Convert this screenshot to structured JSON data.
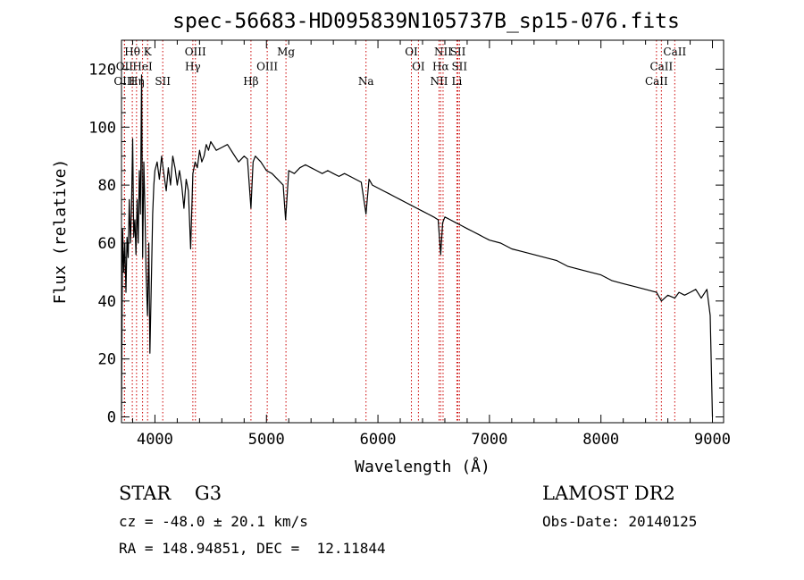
{
  "chart_data": {
    "type": "line",
    "title": "spec-56683-HD095839N105737B_sp15-076.fits",
    "xlabel": "Wavelength (Å)",
    "ylabel": "Flux (relative)",
    "xlim": [
      3700,
      9100
    ],
    "ylim": [
      -2,
      130
    ],
    "xticks": [
      4000,
      5000,
      6000,
      7000,
      8000,
      9000
    ],
    "yticks": [
      0,
      20,
      40,
      60,
      80,
      100,
      120
    ],
    "grid": false,
    "line_color": "#000000",
    "marker_color": "#cc0000",
    "series": [
      {
        "x": [
          3700,
          3710,
          3720,
          3730,
          3740,
          3750,
          3760,
          3770,
          3780,
          3790,
          3800,
          3810,
          3820,
          3830,
          3840,
          3850,
          3860,
          3870,
          3880,
          3890,
          3900,
          3910,
          3920,
          3933,
          3945,
          3955,
          3968,
          3980,
          3990,
          4000,
          4020,
          4040,
          4060,
          4080,
          4101,
          4120,
          4140,
          4160,
          4180,
          4200,
          4220,
          4240,
          4260,
          4280,
          4300,
          4320,
          4340,
          4360,
          4380,
          4400,
          4420,
          4440,
          4460,
          4480,
          4500,
          4550,
          4600,
          4650,
          4700,
          4750,
          4800,
          4830,
          4861,
          4880,
          4900,
          4950,
          5000,
          5050,
          5100,
          5150,
          5172,
          5200,
          5250,
          5300,
          5350,
          5400,
          5450,
          5500,
          5550,
          5600,
          5650,
          5700,
          5750,
          5800,
          5850,
          5893,
          5920,
          5950,
          6000,
          6050,
          6100,
          6150,
          6200,
          6250,
          6300,
          6350,
          6400,
          6450,
          6500,
          6540,
          6563,
          6580,
          6600,
          6650,
          6700,
          6750,
          6800,
          6850,
          6900,
          6950,
          7000,
          7100,
          7200,
          7300,
          7400,
          7500,
          7600,
          7700,
          7800,
          7900,
          8000,
          8100,
          8200,
          8300,
          8400,
          8498,
          8542,
          8600,
          8662,
          8700,
          8750,
          8800,
          8850,
          8900,
          8950,
          8980,
          9000
        ],
        "y": [
          2,
          65,
          50,
          60,
          43,
          62,
          55,
          75,
          60,
          72,
          96,
          62,
          68,
          56,
          75,
          60,
          85,
          70,
          118,
          55,
          88,
          72,
          50,
          35,
          60,
          22,
          48,
          70,
          80,
          85,
          88,
          82,
          90,
          84,
          78,
          86,
          80,
          90,
          86,
          80,
          85,
          80,
          72,
          82,
          78,
          58,
          84,
          88,
          86,
          92,
          88,
          90,
          94,
          92,
          95,
          92,
          93,
          94,
          91,
          88,
          90,
          89,
          72,
          88,
          90,
          88,
          85,
          84,
          82,
          80,
          68,
          85,
          84,
          86,
          87,
          86,
          85,
          84,
          85,
          84,
          83,
          84,
          83,
          82,
          81,
          70,
          82,
          80,
          79,
          78,
          77,
          76,
          75,
          74,
          73,
          72,
          71,
          70,
          69,
          68,
          56,
          67,
          69,
          68,
          67,
          66,
          65,
          64,
          63,
          62,
          61,
          60,
          58,
          57,
          56,
          55,
          54,
          52,
          51,
          50,
          49,
          47,
          46,
          45,
          44,
          43,
          40,
          42,
          41,
          43,
          42,
          43,
          44,
          41,
          44,
          35,
          0
        ]
      }
    ],
    "spectral_lines": [
      {
        "label": "Hθ",
        "wavelength": 3797,
        "row": 1
      },
      {
        "label": "OII",
        "wavelength": 3727,
        "row": 2
      },
      {
        "label": "OIII",
        "wavelength": 3727,
        "row": 3
      },
      {
        "label": "K",
        "wavelength": 3934,
        "row": 1
      },
      {
        "label": "HeI",
        "wavelength": 3889,
        "row": 2
      },
      {
        "label": "Hη",
        "wavelength": 3835,
        "row": 3
      },
      {
        "label": "SII",
        "wavelength": 4070,
        "row": 3
      },
      {
        "label": "OIII",
        "wavelength": 4363,
        "row": 1
      },
      {
        "label": "Hγ",
        "wavelength": 4340,
        "row": 2
      },
      {
        "label": "Hβ",
        "wavelength": 4861,
        "row": 3
      },
      {
        "label": "OIII",
        "wavelength": 5007,
        "row": 2
      },
      {
        "label": "Mg",
        "wavelength": 5175,
        "row": 1
      },
      {
        "label": "Na",
        "wavelength": 5893,
        "row": 3
      },
      {
        "label": "OI",
        "wavelength": 6300,
        "row": 1
      },
      {
        "label": "OI",
        "wavelength": 6363,
        "row": 2
      },
      {
        "label": "NII",
        "wavelength": 6584,
        "row": 1
      },
      {
        "label": "SII",
        "wavelength": 6717,
        "row": 1
      },
      {
        "label": "Hα",
        "wavelength": 6563,
        "row": 2
      },
      {
        "label": "SII",
        "wavelength": 6731,
        "row": 2
      },
      {
        "label": "NII",
        "wavelength": 6548,
        "row": 3
      },
      {
        "label": "Li",
        "wavelength": 6708,
        "row": 3
      },
      {
        "label": "CaII",
        "wavelength": 8662,
        "row": 1
      },
      {
        "label": "CaII",
        "wavelength": 8542,
        "row": 2
      },
      {
        "label": "CaII",
        "wavelength": 8498,
        "row": 3
      }
    ]
  },
  "info": {
    "object_type": "STAR    G3",
    "survey": "LAMOST DR2",
    "redshift": "cz = -48.0 ± 20.1 km/s",
    "obs_date": "Obs-Date: 20140125",
    "coordinates": "RA = 148.94851, DEC =  12.11844"
  }
}
